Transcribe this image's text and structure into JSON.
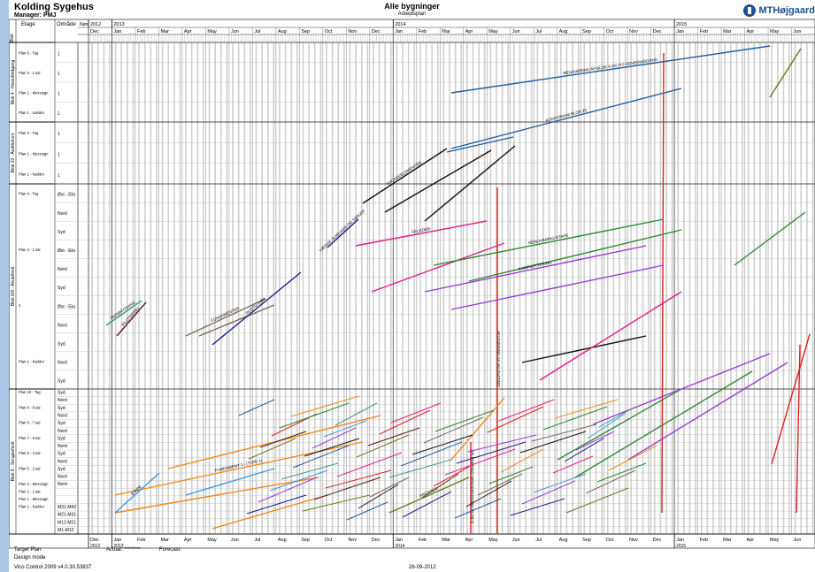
{
  "header": {
    "project": "Kolding Sygehus",
    "manager": "Manager: PMJ",
    "title": "Alle bygninger",
    "subtitle": "Arbejdsplan",
    "logo_text": "MTHøjgaard"
  },
  "table_headers": {
    "col1": "Blok",
    "col2": "Etage",
    "col3": "Område",
    "col4": "Nørr"
  },
  "footer": {
    "target": "Target Plan:",
    "actual": "Actual: ********",
    "forecast": "Forecast:",
    "mode": "Design mode",
    "version": "Vico Control 2009 v4.0.30.53837",
    "date": "28-09-2012"
  },
  "colors": {
    "accent": "#1f4e8c",
    "background": "#a9c6e8"
  },
  "chart_data": {
    "type": "line",
    "title": "Alle bygninger",
    "years": [
      "2012",
      "2013",
      "2014",
      "2015"
    ],
    "months": [
      "Dec",
      "Jan",
      "Feb",
      "Mar",
      "Apr",
      "May",
      "Jun",
      "Jul",
      "Aug",
      "Sep",
      "Oct",
      "Nov",
      "Dec",
      "Jan",
      "Feb",
      "Mar",
      "Apr",
      "May",
      "Jun",
      "Jul",
      "Aug",
      "Sep",
      "Oct",
      "Nov",
      "Dec",
      "Jan",
      "Feb",
      "Mar",
      "Apr",
      "May",
      "Jun"
    ],
    "blocks": [
      {
        "name": "Blok 4 - Hovedindgang",
        "rows": [
          {
            "etage": "Plan 5 - Tag",
            "omrade": "1"
          },
          {
            "etage": "Plan 3 - 1.sal",
            "omrade": "1"
          },
          {
            "etage": "Plan 1 - Mezzaign",
            "omrade": "1"
          },
          {
            "etage": "Plan 1 - Kælder",
            "omrade": "1"
          }
        ]
      },
      {
        "name": "Blok 23 - Auditorium",
        "rows": [
          {
            "etage": "Plan 3 - Tag",
            "omrade": "1"
          },
          {
            "etage": "Plan 1 - Mezzaign",
            "omrade": "1"
          },
          {
            "etage": "Plan 1 - Kælder",
            "omrade": "1"
          }
        ]
      },
      {
        "name": "Blok 6/8 - Akutafsnit",
        "rows": [
          {
            "etage": "Plan 4 - Tag",
            "omrade": "Øst - Eks"
          },
          {
            "etage": "",
            "omrade": "Nord"
          },
          {
            "etage": "",
            "omrade": "Syd"
          },
          {
            "etage": "Plan 3 - 1.sal",
            "omrade": "Øst - Eks"
          },
          {
            "etage": "",
            "omrade": "Nord"
          },
          {
            "etage": "",
            "omrade": "Syd"
          },
          {
            "etage": "2",
            "omrade": "Øst - Eks"
          },
          {
            "etage": "",
            "omrade": "Nord"
          },
          {
            "etage": "",
            "omrade": "Syd"
          },
          {
            "etage": "Plan 1 - Kælder",
            "omrade": "Nord"
          },
          {
            "etage": "",
            "omrade": "Syd"
          }
        ]
      },
      {
        "name": "Blok 9 - Sengeafsnit",
        "rows": [
          {
            "etage": "Plan 10 - Tag",
            "omrade": "Syd"
          },
          {
            "etage": "",
            "omrade": "Nord"
          },
          {
            "etage": "Plan 8 - 8.sal",
            "omrade": "Syd"
          },
          {
            "etage": "",
            "omrade": "Nord"
          },
          {
            "etage": "Plan 8 - 7.sal",
            "omrade": "Syd"
          },
          {
            "etage": "",
            "omrade": "Nord"
          },
          {
            "etage": "Plan 7 - 6.sal",
            "omrade": "Syd"
          },
          {
            "etage": "",
            "omrade": "Nord"
          },
          {
            "etage": "Plan 5 - 3.sal",
            "omrade": "Syd"
          },
          {
            "etage": "",
            "omrade": "Nord"
          },
          {
            "etage": "Plan 5 - 2.sal",
            "omrade": "Syd"
          },
          {
            "etage": "",
            "omrade": "Nord"
          },
          {
            "etage": "Plan 2 - Mezzaign",
            "omrade": "Nord"
          },
          {
            "etage": "Plan 2 - 1.sal",
            "omrade": ""
          },
          {
            "etage": "Plan 1 - Mezzaign",
            "omrade": ""
          },
          {
            "etage": "Plan 1 - Kælder",
            "omrade": "M31-M42"
          },
          {
            "etage": "",
            "omrade": "M21-M31"
          },
          {
            "etage": "",
            "omrade": "M12-M21"
          },
          {
            "etage": "",
            "omrade": "M1-M12"
          }
        ]
      }
    ],
    "series": [
      {
        "color": "#1f5f9e",
        "labels": [
          "RENOVERING AF BLOK 4 OG NY HOVEDINDGANG",
          "AUDITORIUM BLOK 23"
        ]
      },
      {
        "color": "#e0201a",
        "labels": [
          "AFLEVERING AF AKUTAFSNIT",
          "AFLEVERING SENGEBYGNING BLOK 9"
        ]
      },
      {
        "color": "#111111",
        "labels": [
          "FACADEELEMENTER"
        ]
      },
      {
        "color": "#e0208a",
        "labels": [
          "FACADER"
        ]
      },
      {
        "color": "#7a6a5a",
        "labels": [
          "FUNDAMENTER"
        ]
      },
      {
        "color": "#1a1a8a",
        "labels": [
          "IN SITU DÆK",
          "VÆGGE, BJÆLKER OG SØJLER"
        ]
      },
      {
        "color": "#2e8a2e",
        "labels": [
          "RENOVERING ETAPE"
        ]
      },
      {
        "color": "#9a3ad6",
        "labels": [
          "KOMPLETTERING"
        ]
      },
      {
        "color": "#f08a1a",
        "labels": [
          "FUNDAMENT 1 - (TYPE 1)"
        ]
      },
      {
        "color": "#3a9ad6",
        "labels": [
          "ETAPE"
        ]
      },
      {
        "color": "#6a7a1a",
        "labels": [
          "FACADER"
        ]
      },
      {
        "color": "#3a9a8a",
        "labels": [
          "NEDBRYDNING"
        ]
      },
      {
        "color": "#5a1a1a",
        "labels": [
          "PILOTERING"
        ]
      }
    ],
    "critical_dates": [
      "Apr 2014",
      "Nov 2014",
      "May 2015"
    ],
    "grid": true
  }
}
